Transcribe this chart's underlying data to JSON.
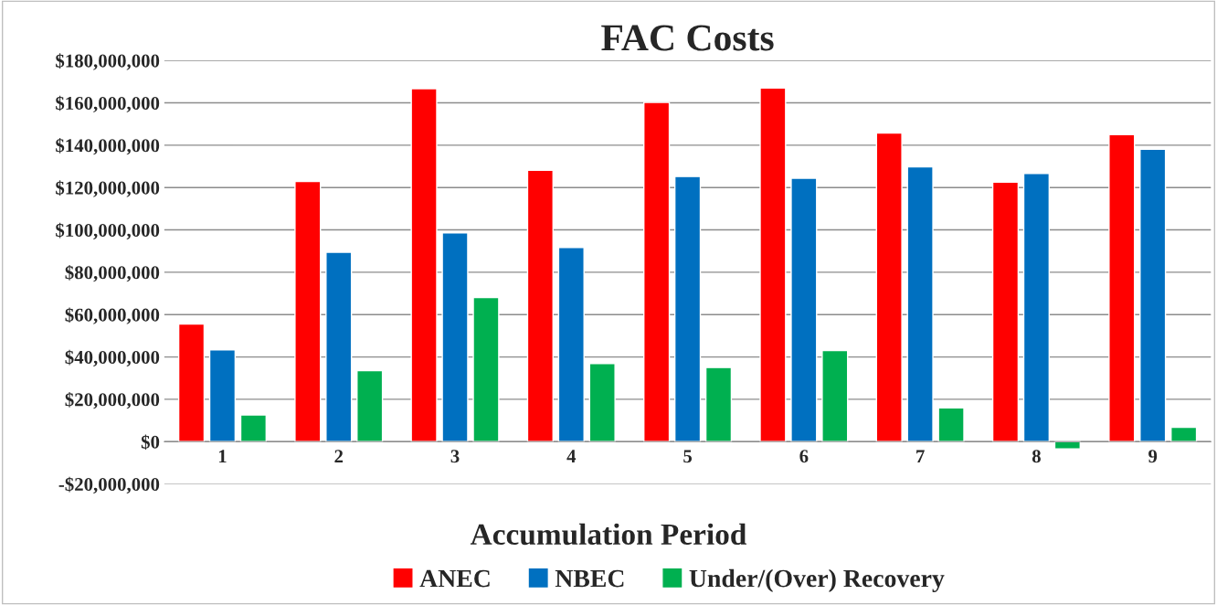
{
  "chart_data": {
    "type": "bar",
    "title": "FAC Costs",
    "xlabel": "Accumulation Period",
    "categories": [
      "1",
      "2",
      "3",
      "4",
      "5",
      "6",
      "7",
      "8",
      "9"
    ],
    "series": [
      {
        "name": "ANEC",
        "color": "#ff0000",
        "values": [
          55600000,
          122900000,
          166700000,
          128200000,
          160200000,
          167000000,
          145700000,
          122500000,
          145000000
        ]
      },
      {
        "name": "NBEC",
        "color": "#0070c0",
        "values": [
          43400000,
          89400000,
          98600000,
          91700000,
          125200000,
          124400000,
          129800000,
          126700000,
          138100000
        ]
      },
      {
        "name": "Under/(Over) Recovery",
        "color": "#00b050",
        "values": [
          12600000,
          33500000,
          68100000,
          36900000,
          35000000,
          43000000,
          16000000,
          -3400000,
          6800000
        ]
      }
    ],
    "ylim": [
      -20000000,
      180000000
    ],
    "yticks": [
      {
        "value": -20000000,
        "label": "-$20,000,000"
      },
      {
        "value": 0,
        "label": "$0"
      },
      {
        "value": 20000000,
        "label": "$20,000,000"
      },
      {
        "value": 40000000,
        "label": "$40,000,000"
      },
      {
        "value": 60000000,
        "label": "$60,000,000"
      },
      {
        "value": 80000000,
        "label": "$80,000,000"
      },
      {
        "value": 100000000,
        "label": "$100,000,000"
      },
      {
        "value": 120000000,
        "label": "$120,000,000"
      },
      {
        "value": 140000000,
        "label": "$140,000,000"
      },
      {
        "value": 160000000,
        "label": "$160,000,000"
      },
      {
        "value": 180000000,
        "label": "$180,000,000"
      }
    ],
    "grid": "y",
    "legend": "bottom"
  }
}
